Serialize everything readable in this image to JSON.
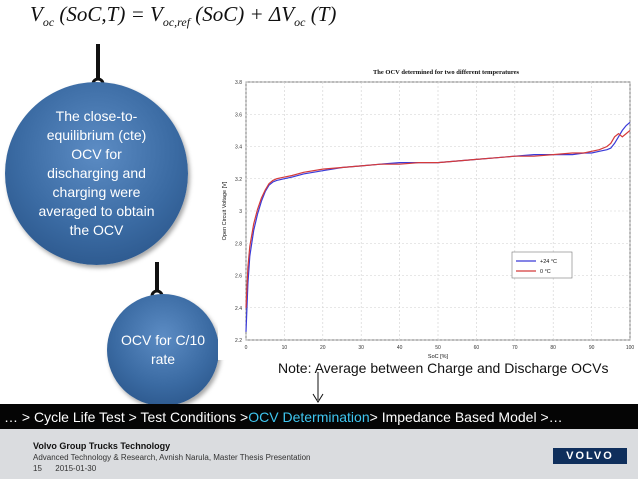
{
  "equation": {
    "lhs": "V",
    "lhs_sub": "oc",
    "lhs_args": "(SoC,T) = V",
    "ref_sub": "oc,ref",
    "ref_args": "(SoC) + ΔV",
    "delta_sub": "oc",
    "delta_args": "(T)"
  },
  "bubbles": {
    "cte_text": "The close-to-equilibrium (cte) OCV for discharging and charging were averaged to obtain the OCV",
    "rate_text": "OCV for C/10 rate"
  },
  "note": "Note: Average between Charge and Discharge OCVs",
  "chart_data": {
    "type": "line",
    "title": "The OCV determined for two different temperatures",
    "xlabel": "SoC [%]",
    "ylabel": "Open Circuit Voltage [V]",
    "xlim": [
      0,
      100
    ],
    "ylim": [
      2.2,
      3.8
    ],
    "xticks": [
      "0",
      "10",
      "20",
      "30",
      "40",
      "50",
      "60",
      "70",
      "80",
      "90",
      "100"
    ],
    "yticks": [
      "2.2",
      "2.4",
      "2.6",
      "2.8",
      "3",
      "3.2",
      "3.4",
      "3.6",
      "3.8"
    ],
    "grid": true,
    "legend_position": "right",
    "series": [
      {
        "name": "+24 °C",
        "color": "#3a3ad8",
        "x": [
          0,
          0.5,
          1,
          2,
          3,
          4,
          5,
          6,
          7,
          8,
          10,
          12,
          15,
          20,
          25,
          30,
          35,
          40,
          45,
          50,
          55,
          60,
          65,
          70,
          75,
          80,
          85,
          88,
          90,
          92,
          94,
          95,
          96,
          97,
          98,
          99,
          100
        ],
        "y": [
          2.25,
          2.55,
          2.72,
          2.88,
          2.98,
          3.06,
          3.12,
          3.16,
          3.18,
          3.19,
          3.2,
          3.21,
          3.23,
          3.25,
          3.27,
          3.28,
          3.29,
          3.3,
          3.3,
          3.3,
          3.31,
          3.32,
          3.33,
          3.34,
          3.35,
          3.35,
          3.35,
          3.36,
          3.36,
          3.37,
          3.38,
          3.39,
          3.42,
          3.46,
          3.5,
          3.53,
          3.55
        ]
      },
      {
        "name": "0 °C",
        "color": "#d43a3a",
        "x": [
          0,
          0.5,
          1,
          2,
          3,
          4,
          5,
          6,
          7,
          8,
          10,
          12,
          15,
          20,
          25,
          30,
          35,
          40,
          45,
          50,
          55,
          60,
          65,
          70,
          75,
          80,
          85,
          88,
          90,
          92,
          94,
          95,
          96,
          97,
          98,
          99,
          100
        ],
        "y": [
          2.4,
          2.65,
          2.78,
          2.92,
          3.01,
          3.08,
          3.13,
          3.17,
          3.19,
          3.2,
          3.21,
          3.22,
          3.24,
          3.26,
          3.27,
          3.28,
          3.29,
          3.29,
          3.3,
          3.3,
          3.31,
          3.32,
          3.33,
          3.34,
          3.34,
          3.35,
          3.36,
          3.36,
          3.37,
          3.38,
          3.4,
          3.42,
          3.46,
          3.48,
          3.46,
          3.48,
          3.5
        ]
      }
    ]
  },
  "breadcrumb": {
    "prefix": "… > Cycle Life Test > Test Conditions > ",
    "current": "OCV Determination",
    "suffix": " > Impedance Based Model >…"
  },
  "footer": {
    "org": "Volvo Group Trucks Technology",
    "subtitle": "Advanced Technology & Research, Avnish Narula, Master Thesis Presentation",
    "page": "15",
    "date": "2015-01-30",
    "logo": "VOLVO"
  }
}
